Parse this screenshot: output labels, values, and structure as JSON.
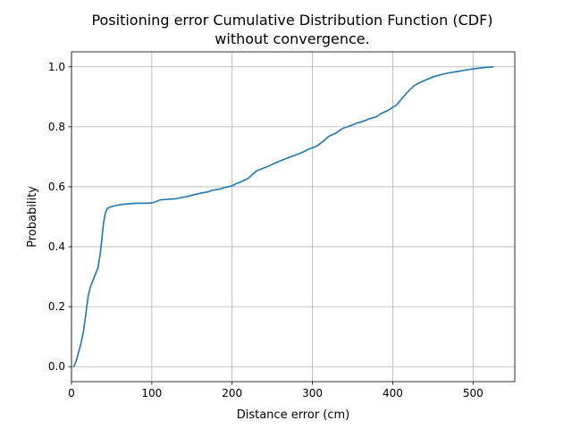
{
  "chart_data": {
    "type": "line",
    "title": "Positioning error Cumulative Distribution Function (CDF)",
    "title_line2": "without convergence.",
    "xlabel": "Distance error (cm)",
    "ylabel": "Probability",
    "xlim": [
      0,
      552
    ],
    "ylim": [
      -0.05,
      1.05
    ],
    "grid": true,
    "x_ticks": [
      0,
      100,
      200,
      300,
      400,
      500
    ],
    "x_tick_labels": [
      "0",
      "100",
      "200",
      "300",
      "400",
      "500"
    ],
    "y_ticks": [
      0.0,
      0.2,
      0.4,
      0.6,
      0.8,
      1.0
    ],
    "y_tick_labels": [
      "0.0",
      "0.2",
      "0.4",
      "0.6",
      "0.8",
      "1.0"
    ],
    "series": [
      {
        "name": "CDF",
        "color": "#1f77b4",
        "x": [
          3,
          6,
          9,
          12,
          15,
          18,
          21,
          24,
          27,
          30,
          33,
          36,
          38,
          40,
          42,
          44,
          46,
          50,
          55,
          60,
          70,
          80,
          90,
          100,
          105,
          110,
          120,
          130,
          135,
          145,
          150,
          160,
          170,
          175,
          185,
          190,
          200,
          205,
          210,
          220,
          225,
          230,
          235,
          245,
          250,
          260,
          265,
          275,
          285,
          290,
          295,
          305,
          310,
          315,
          320,
          330,
          335,
          340,
          350,
          355,
          365,
          370,
          380,
          385,
          395,
          400,
          405,
          410,
          415,
          420,
          425,
          430,
          440,
          450,
          460,
          470,
          480,
          490,
          500,
          510,
          515,
          525
        ],
        "y": [
          0.0,
          0.02,
          0.05,
          0.08,
          0.12,
          0.18,
          0.24,
          0.27,
          0.29,
          0.31,
          0.33,
          0.38,
          0.43,
          0.48,
          0.51,
          0.525,
          0.53,
          0.534,
          0.537,
          0.54,
          0.543,
          0.545,
          0.545,
          0.546,
          0.55,
          0.556,
          0.558,
          0.56,
          0.563,
          0.568,
          0.572,
          0.578,
          0.583,
          0.588,
          0.592,
          0.597,
          0.603,
          0.61,
          0.615,
          0.628,
          0.64,
          0.652,
          0.658,
          0.668,
          0.675,
          0.686,
          0.692,
          0.702,
          0.712,
          0.718,
          0.725,
          0.735,
          0.745,
          0.755,
          0.768,
          0.78,
          0.79,
          0.797,
          0.806,
          0.812,
          0.82,
          0.826,
          0.834,
          0.843,
          0.856,
          0.865,
          0.873,
          0.89,
          0.905,
          0.92,
          0.933,
          0.943,
          0.955,
          0.966,
          0.974,
          0.98,
          0.984,
          0.989,
          0.993,
          0.996,
          0.998,
          1.0
        ]
      }
    ]
  }
}
